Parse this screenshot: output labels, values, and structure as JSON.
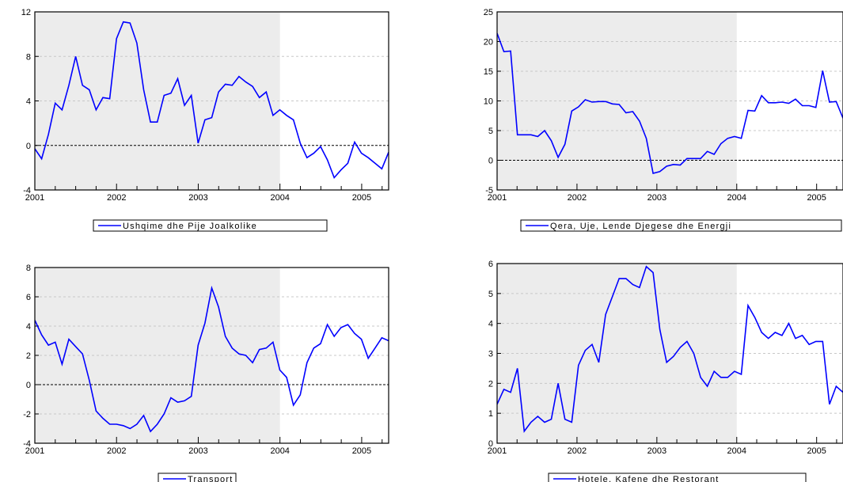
{
  "colors": {
    "line": "#0000ff",
    "shade": "#ececec",
    "grid": "#c8c8c8",
    "axis": "#000000"
  },
  "chart_data": [
    {
      "type": "line",
      "title": "",
      "xlabel": "",
      "ylabel": "",
      "grid": true,
      "legend_position": "bottom",
      "x_ticks": [
        "2001",
        "2002",
        "2003",
        "2004",
        "2005"
      ],
      "xlim": [
        2001.0,
        2005.33
      ],
      "ylim": [
        -4,
        12
      ],
      "y_ticks": [
        -4,
        0,
        4,
        8,
        12
      ],
      "reference_line": 0,
      "shaded_range": [
        2001.0,
        2004.0
      ],
      "series": [
        {
          "name": "Ushqime dhe Pije Joalkolike",
          "values": [
            -0.3,
            -1.2,
            1.0,
            3.8,
            3.2,
            5.4,
            8.0,
            5.4,
            5.0,
            3.2,
            4.3,
            4.2,
            9.6,
            11.1,
            11.0,
            9.2,
            5.0,
            2.1,
            2.1,
            4.5,
            4.7,
            6.0,
            3.6,
            4.5,
            0.2,
            2.3,
            2.5,
            4.8,
            5.5,
            5.4,
            6.2,
            5.7,
            5.3,
            4.3,
            4.8,
            2.7,
            3.2,
            2.7,
            2.3,
            0.2,
            -1.1,
            -0.7,
            -0.1,
            -1.3,
            -2.9,
            -2.2,
            -1.6,
            0.3,
            -0.7,
            -1.1,
            -1.6,
            -2.1,
            -0.6
          ]
        }
      ]
    },
    {
      "type": "line",
      "title": "",
      "xlabel": "",
      "ylabel": "",
      "grid": true,
      "legend_position": "bottom",
      "x_ticks": [
        "2001",
        "2002",
        "2003",
        "2004",
        "2005"
      ],
      "xlim": [
        2001.0,
        2005.33
      ],
      "ylim": [
        -5,
        25
      ],
      "y_ticks": [
        -5,
        0,
        5,
        10,
        15,
        20,
        25
      ],
      "reference_line": 0,
      "shaded_range": [
        2001.0,
        2004.0
      ],
      "series": [
        {
          "name": "Qera, Uje, Lende Djegese dhe Energji",
          "values": [
            21.4,
            18.3,
            18.4,
            4.3,
            4.3,
            4.3,
            4.0,
            5.0,
            3.3,
            0.5,
            2.7,
            8.3,
            9.0,
            10.2,
            9.8,
            9.9,
            9.9,
            9.5,
            9.4,
            8.0,
            8.2,
            6.6,
            3.7,
            -2.2,
            -1.9,
            -1.0,
            -0.7,
            -0.8,
            0.3,
            0.3,
            0.3,
            1.5,
            1.0,
            2.8,
            3.7,
            4.0,
            3.7,
            8.4,
            8.3,
            10.9,
            9.7,
            9.7,
            9.8,
            9.6,
            10.3,
            9.2,
            9.2,
            8.9,
            15.1,
            9.8,
            9.9,
            7.1
          ]
        }
      ]
    },
    {
      "type": "line",
      "title": "",
      "xlabel": "",
      "ylabel": "",
      "grid": true,
      "legend_position": "bottom",
      "x_ticks": [
        "2001",
        "2002",
        "2003",
        "2004",
        "2005"
      ],
      "xlim": [
        2001.0,
        2005.33
      ],
      "ylim": [
        -4,
        8
      ],
      "y_ticks": [
        -4,
        -2,
        0,
        2,
        4,
        6,
        8
      ],
      "reference_line": 0,
      "shaded_range": [
        2001.0,
        2004.0
      ],
      "series": [
        {
          "name": "Transport",
          "values": [
            4.4,
            3.4,
            2.7,
            2.9,
            1.4,
            3.1,
            2.6,
            2.1,
            0.3,
            -1.8,
            -2.3,
            -2.7,
            -2.7,
            -2.8,
            -3.0,
            -2.7,
            -2.1,
            -3.2,
            -2.7,
            -2.0,
            -0.9,
            -1.2,
            -1.1,
            -0.8,
            2.7,
            4.2,
            6.6,
            5.3,
            3.3,
            2.5,
            2.1,
            2.0,
            1.5,
            2.4,
            2.5,
            2.9,
            1.0,
            0.5,
            -1.4,
            -0.7,
            1.5,
            2.5,
            2.8,
            4.1,
            3.3,
            3.9,
            4.1,
            3.5,
            3.1,
            1.8,
            2.5,
            3.2,
            3.0
          ]
        }
      ]
    },
    {
      "type": "line",
      "title": "",
      "xlabel": "",
      "ylabel": "",
      "grid": true,
      "legend_position": "bottom",
      "x_ticks": [
        "2001",
        "2002",
        "2003",
        "2004",
        "2005"
      ],
      "xlim": [
        2001.0,
        2005.33
      ],
      "ylim": [
        0,
        6
      ],
      "y_ticks": [
        0,
        1,
        2,
        3,
        4,
        5,
        6
      ],
      "reference_line": 0,
      "shaded_range": [
        2001.0,
        2004.0
      ],
      "series": [
        {
          "name": "Hotele, Kafene dhe Restorant",
          "values": [
            1.3,
            1.8,
            1.7,
            2.5,
            0.4,
            0.7,
            0.9,
            0.7,
            0.8,
            2.0,
            0.8,
            0.7,
            2.6,
            3.1,
            3.3,
            2.7,
            4.3,
            4.9,
            5.5,
            5.5,
            5.3,
            5.2,
            5.9,
            5.7,
            3.8,
            2.7,
            2.9,
            3.2,
            3.4,
            3.0,
            2.2,
            1.9,
            2.4,
            2.2,
            2.2,
            2.4,
            2.3,
            4.6,
            4.2,
            3.7,
            3.5,
            3.7,
            3.6,
            4.0,
            3.5,
            3.6,
            3.3,
            3.4,
            3.4,
            1.3,
            1.9,
            1.7
          ]
        }
      ]
    }
  ]
}
